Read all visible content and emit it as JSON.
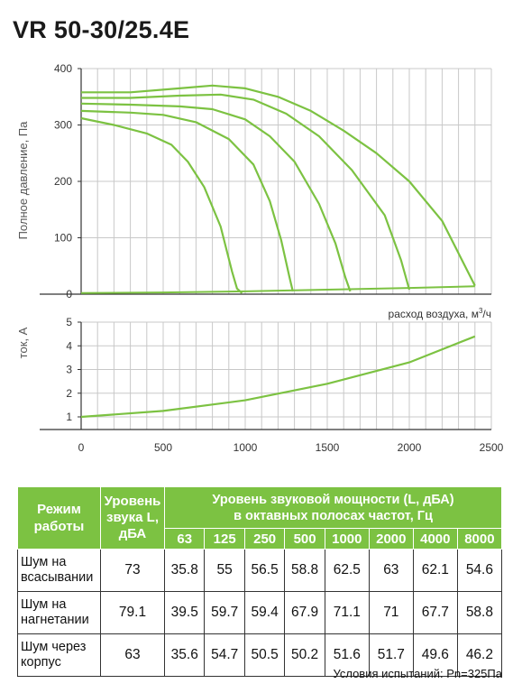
{
  "title": "VR 50-30/25.4E",
  "chart_data": [
    {
      "type": "line",
      "name": "pressure",
      "ylabel": "Полное давление, Па",
      "xlabel_prefix": "расход воздуха, м",
      "xlabel_sup": "3",
      "xlabel_suffix": "/ч",
      "xlim": [
        0,
        2500
      ],
      "ylim": [
        0,
        400
      ],
      "y_ticks": [
        "0",
        "100",
        "200",
        "300",
        "400"
      ],
      "grid": true,
      "color": "#7cc242",
      "series": [
        {
          "x": [
            0,
            200,
            400,
            550,
            650,
            750,
            850,
            920,
            950,
            980
          ],
          "y": [
            312,
            300,
            285,
            265,
            235,
            190,
            120,
            40,
            10,
            2
          ]
        },
        {
          "x": [
            0,
            300,
            500,
            700,
            900,
            1050,
            1150,
            1220,
            1270,
            1290
          ],
          "y": [
            325,
            322,
            318,
            305,
            275,
            230,
            165,
            95,
            30,
            5
          ]
        },
        {
          "x": [
            0,
            300,
            600,
            800,
            1000,
            1150,
            1300,
            1450,
            1550,
            1610,
            1640
          ],
          "y": [
            338,
            336,
            333,
            328,
            310,
            280,
            235,
            160,
            90,
            30,
            5
          ]
        },
        {
          "x": [
            0,
            300,
            600,
            850,
            1050,
            1250,
            1450,
            1650,
            1850,
            1950,
            2000
          ],
          "y": [
            348,
            348,
            352,
            354,
            345,
            320,
            280,
            220,
            140,
            60,
            8
          ]
        },
        {
          "x": [
            0,
            300,
            600,
            800,
            1000,
            1200,
            1400,
            1600,
            1800,
            2000,
            2200,
            2400
          ],
          "y": [
            358,
            358,
            365,
            370,
            365,
            350,
            325,
            290,
            250,
            200,
            130,
            15
          ]
        }
      ],
      "baseline": {
        "x": [
          0,
          500,
          1000,
          1500,
          2000,
          2400
        ],
        "y": [
          2,
          3,
          5,
          8,
          11,
          14
        ]
      }
    },
    {
      "type": "line",
      "name": "current",
      "ylabel": "ток, А",
      "xlim": [
        0,
        2500
      ],
      "ylim": [
        1,
        5
      ],
      "y_ticks": [
        "1",
        "2",
        "3",
        "4",
        "5"
      ],
      "x_ticks": [
        "0",
        "500",
        "1000",
        "1500",
        "2000",
        "2500"
      ],
      "grid": true,
      "color": "#7cc242",
      "series": [
        {
          "x": [
            0,
            500,
            1000,
            1500,
            2000,
            2400
          ],
          "y": [
            1.0,
            1.25,
            1.7,
            2.4,
            3.3,
            4.4
          ]
        }
      ]
    }
  ],
  "table": {
    "h_mode": "Режим работы",
    "h_level": "Уровень звука L, дБА",
    "h_power_1": "Уровень звуковой мощности (L, дБА)",
    "h_power_2": "в октавных полосах частот, Гц",
    "bands": [
      "63",
      "125",
      "250",
      "500",
      "1000",
      "2000",
      "4000",
      "8000"
    ],
    "rows": [
      {
        "label": "Шум на всасывании",
        "level": "73",
        "values": [
          "35.8",
          "55",
          "56.5",
          "58.8",
          "62.5",
          "63",
          "62.1",
          "54.6"
        ]
      },
      {
        "label": "Шум на нагнетании",
        "level": "79.1",
        "values": [
          "39.5",
          "59.7",
          "59.4",
          "67.9",
          "71.1",
          "71",
          "67.7",
          "58.8"
        ]
      },
      {
        "label": "Шум через корпус",
        "level": "63",
        "values": [
          "35.6",
          "54.7",
          "50.5",
          "50.2",
          "51.6",
          "51.7",
          "49.6",
          "46.2"
        ]
      }
    ]
  },
  "conditions": "Условия испытаний: Рn=325Па"
}
